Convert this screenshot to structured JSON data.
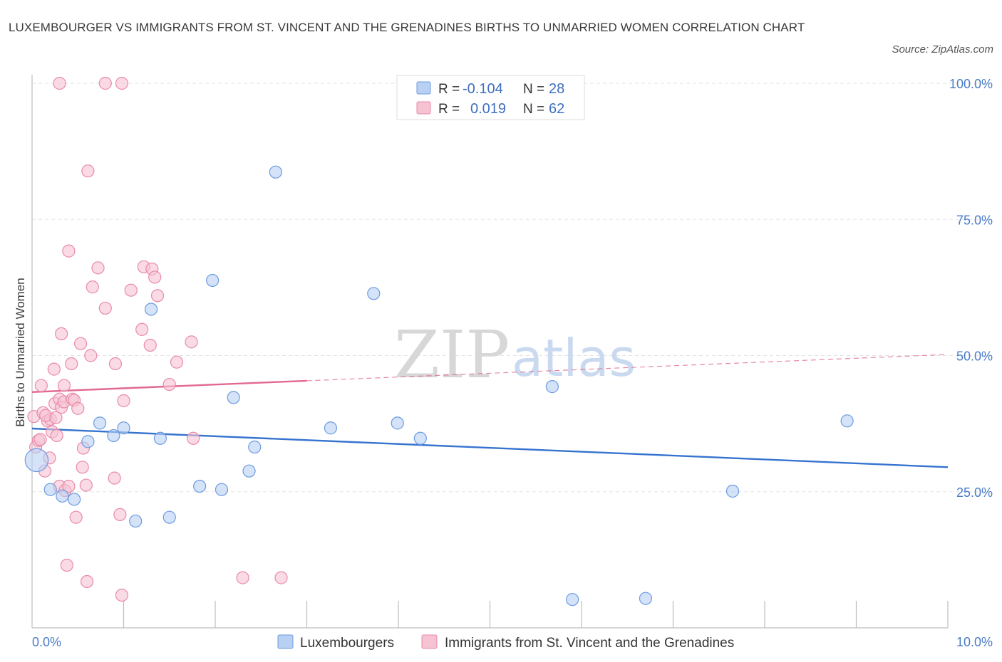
{
  "header": {
    "title": "LUXEMBOURGER VS IMMIGRANTS FROM ST. VINCENT AND THE GRENADINES BIRTHS TO UNMARRIED WOMEN CORRELATION CHART",
    "source": "Source: ZipAtlas.com"
  },
  "watermark": {
    "zip": "ZIP",
    "atlas": "atlas"
  },
  "colors": {
    "blue_fill": "#b8d1f3",
    "blue_stroke": "#6d9be0",
    "blue_line": "#3673cf",
    "pink_fill": "#f6c3d3",
    "pink_stroke": "#e98aa8",
    "pink_line": "#e2698f",
    "grid": "#e3e3e3",
    "axis_text": "#4a7cc7"
  },
  "legend": {
    "rows": [
      {
        "r_label": "R =",
        "r_value": "-0.104",
        "n_label": "N =",
        "n_value": "28"
      },
      {
        "r_label": "R =",
        "r_value": "0.019",
        "n_label": "N =",
        "n_value": "62"
      }
    ]
  },
  "bottom_legend": {
    "items": [
      "Luxembourgers",
      "Immigrants from St. Vincent and the Grenadines"
    ]
  },
  "chart_data": {
    "type": "scatter",
    "ylabel": "Births to Unmarried Women",
    "xlabel": "",
    "xlim": [
      0,
      10
    ],
    "ylim": [
      0,
      100
    ],
    "x_tick_labels": [
      {
        "value": 0,
        "label": "0.0%"
      },
      {
        "value": 10,
        "label": "10.0%"
      }
    ],
    "y_tick_labels": [
      {
        "value": 25,
        "label": "25.0%"
      },
      {
        "value": 50,
        "label": "50.0%"
      },
      {
        "value": 75,
        "label": "75.0%"
      },
      {
        "value": 100,
        "label": "100.0%"
      }
    ],
    "grid": true,
    "legend_position": "top-center",
    "series": [
      {
        "name": "Luxembourgers",
        "R": -0.104,
        "N": 28,
        "trend": {
          "x": [
            0,
            10
          ],
          "y": [
            36.6,
            29.5
          ],
          "dashed_from": null
        },
        "points": [
          [
            0.05,
            30.8,
            1.9
          ],
          [
            0.2,
            25.4,
            1
          ],
          [
            0.33,
            24.2,
            1
          ],
          [
            0.46,
            23.6,
            1
          ],
          [
            0.61,
            34.2,
            1
          ],
          [
            0.74,
            37.6,
            1
          ],
          [
            0.89,
            35.3,
            1
          ],
          [
            1.0,
            36.7,
            1
          ],
          [
            1.13,
            19.6,
            1
          ],
          [
            1.3,
            58.5,
            1
          ],
          [
            1.4,
            34.8,
            1
          ],
          [
            1.5,
            20.3,
            1
          ],
          [
            1.83,
            26.0,
            1
          ],
          [
            1.97,
            63.8,
            1
          ],
          [
            2.07,
            25.4,
            1
          ],
          [
            2.2,
            42.3,
            1
          ],
          [
            2.37,
            28.8,
            1
          ],
          [
            2.43,
            33.2,
            1
          ],
          [
            2.66,
            83.7,
            1
          ],
          [
            3.26,
            36.7,
            1
          ],
          [
            3.73,
            61.4,
            1
          ],
          [
            3.99,
            37.6,
            1
          ],
          [
            4.24,
            34.8,
            1
          ],
          [
            5.68,
            44.3,
            1
          ],
          [
            5.9,
            5.2,
            1
          ],
          [
            6.7,
            5.4,
            1
          ],
          [
            7.65,
            25.1,
            1
          ],
          [
            8.9,
            38.0,
            1
          ]
        ]
      },
      {
        "name": "Immigrants from St. Vincent and the Grenadines",
        "R": 0.019,
        "N": 62,
        "trend": {
          "x": [
            0,
            10
          ],
          "y": [
            43.3,
            50.2
          ],
          "dashed_from": 3.0
        },
        "points": [
          [
            0.02,
            38.8,
            1
          ],
          [
            0.04,
            33.2,
            1
          ],
          [
            0.07,
            34.4,
            1
          ],
          [
            0.09,
            34.6,
            1
          ],
          [
            0.1,
            44.5,
            1
          ],
          [
            0.12,
            39.5,
            1
          ],
          [
            0.14,
            28.8,
            1
          ],
          [
            0.17,
            38.0,
            1
          ],
          [
            0.19,
            31.2,
            1
          ],
          [
            0.2,
            38.3,
            1
          ],
          [
            0.22,
            36.0,
            1
          ],
          [
            0.24,
            47.5,
            1
          ],
          [
            0.25,
            41.2,
            1
          ],
          [
            0.27,
            35.3,
            1
          ],
          [
            0.3,
            42.0,
            1
          ],
          [
            0.32,
            40.5,
            1
          ],
          [
            0.3,
            100.0,
            1
          ],
          [
            0.3,
            26.0,
            1
          ],
          [
            0.32,
            54.0,
            1
          ],
          [
            0.35,
            41.5,
            1
          ],
          [
            0.36,
            25.2,
            1
          ],
          [
            0.38,
            11.5,
            1
          ],
          [
            0.35,
            44.5,
            1
          ],
          [
            0.4,
            26.0,
            1
          ],
          [
            0.4,
            69.2,
            1
          ],
          [
            0.43,
            48.5,
            1
          ],
          [
            0.44,
            42.0,
            1
          ],
          [
            0.46,
            41.8,
            1
          ],
          [
            0.48,
            20.3,
            1
          ],
          [
            0.5,
            40.3,
            1
          ],
          [
            0.53,
            52.2,
            1
          ],
          [
            0.55,
            29.5,
            1
          ],
          [
            0.56,
            33.0,
            1
          ],
          [
            0.59,
            26.2,
            1
          ],
          [
            0.6,
            8.5,
            1
          ],
          [
            0.61,
            83.9,
            1
          ],
          [
            0.64,
            50.0,
            1
          ],
          [
            0.66,
            62.6,
            1
          ],
          [
            0.72,
            66.1,
            1
          ],
          [
            0.8,
            58.7,
            1
          ],
          [
            0.8,
            100.0,
            1
          ],
          [
            0.9,
            27.5,
            1
          ],
          [
            0.91,
            48.5,
            1
          ],
          [
            0.96,
            20.8,
            1
          ],
          [
            0.98,
            6.0,
            1
          ],
          [
            1.0,
            41.7,
            1
          ],
          [
            0.98,
            100.0,
            1
          ],
          [
            1.08,
            62.0,
            1
          ],
          [
            1.2,
            54.8,
            1
          ],
          [
            1.22,
            66.3,
            1
          ],
          [
            1.29,
            51.9,
            1
          ],
          [
            1.31,
            65.9,
            1
          ],
          [
            1.34,
            64.4,
            1
          ],
          [
            1.37,
            61.0,
            1
          ],
          [
            1.5,
            44.7,
            1
          ],
          [
            1.58,
            48.8,
            1
          ],
          [
            1.74,
            52.5,
            1
          ],
          [
            1.76,
            34.8,
            1
          ],
          [
            2.3,
            9.2,
            1
          ],
          [
            2.72,
            9.2,
            1
          ],
          [
            0.15,
            39.0,
            1
          ],
          [
            0.26,
            38.6,
            1
          ]
        ]
      }
    ]
  }
}
